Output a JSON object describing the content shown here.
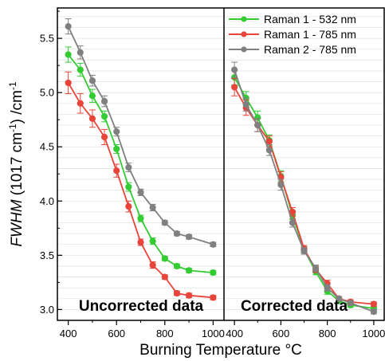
{
  "chart_data": {
    "type": "line",
    "xlabel": "Burning Temperature °C",
    "ylabel_parts": [
      "FWHM",
      " (1017 cm",
      "-1",
      ") /cm",
      "-1"
    ],
    "ylim": [
      2.9,
      5.78
    ],
    "yticks": [
      "3.0",
      "3.5",
      "4.0",
      "4.5",
      "5.0",
      "5.5"
    ],
    "ytick_values": [
      3.0,
      3.5,
      4.0,
      4.5,
      5.0,
      5.5
    ],
    "grid": true,
    "legend_position": "top-right",
    "colors": {
      "raman1_532": "#33cc33",
      "raman1_785": "#e8443a",
      "raman2_785": "#808080"
    },
    "panels": [
      {
        "label": "Uncorrected data",
        "xlim": [
          355,
          1045
        ],
        "xticks": [
          "400",
          "600",
          "800",
          "1000"
        ],
        "xtick_values": [
          400,
          600,
          800,
          1000
        ],
        "series": [
          {
            "name": "Raman 1 - 532 nm",
            "color_key": "raman1_532",
            "x": [
              400,
              450,
              500,
              550,
              600,
              650,
              700,
              750,
              800,
              850,
              900,
              1000
            ],
            "y": [
              5.35,
              5.21,
              4.97,
              4.78,
              4.48,
              4.13,
              3.84,
              3.63,
              3.47,
              3.4,
              3.36,
              3.34
            ],
            "err": [
              0.07,
              0.06,
              0.06,
              0.05,
              0.04,
              0.04,
              0.03,
              0.03,
              0.02,
              0.02,
              0.02,
              0.02
            ]
          },
          {
            "name": "Raman 1 - 785 nm",
            "color_key": "raman1_785",
            "x": [
              400,
              450,
              500,
              550,
              600,
              650,
              700,
              750,
              800,
              850,
              900,
              1000
            ],
            "y": [
              5.09,
              4.9,
              4.76,
              4.59,
              4.28,
              3.95,
              3.62,
              3.41,
              3.3,
              3.15,
              3.13,
              3.11
            ],
            "err": [
              0.1,
              0.09,
              0.08,
              0.07,
              0.06,
              0.05,
              0.03,
              0.03,
              0.02,
              0.02,
              0.02,
              0.02
            ]
          },
          {
            "name": "Raman 2 - 785 nm",
            "color_key": "raman2_785",
            "x": [
              400,
              450,
              500,
              550,
              600,
              650,
              700,
              750,
              800,
              850,
              900,
              1000
            ],
            "y": [
              5.61,
              5.37,
              5.11,
              4.92,
              4.64,
              4.31,
              4.08,
              3.94,
              3.8,
              3.7,
              3.67,
              3.6
            ],
            "err": [
              0.07,
              0.06,
              0.05,
              0.05,
              0.04,
              0.04,
              0.03,
              0.03,
              0.02,
              0.02,
              0.02,
              0.02
            ]
          }
        ]
      },
      {
        "label": "Corrected data",
        "xlim": [
          355,
          1045
        ],
        "xticks": [
          "400",
          "600",
          "800",
          "1000"
        ],
        "xtick_values": [
          400,
          600,
          800,
          1000
        ],
        "series": [
          {
            "name": "Raman 1 - 532 nm",
            "color_key": "raman1_532",
            "x": [
              400,
              450,
              500,
              550,
              600,
              650,
              700,
              750,
              800,
              850,
              900,
              1000
            ],
            "y": [
              5.14,
              4.95,
              4.77,
              4.56,
              4.23,
              3.87,
              3.55,
              3.35,
              3.17,
              3.08,
              3.04,
              3.01
            ],
            "err": [
              0.07,
              0.06,
              0.06,
              0.05,
              0.05,
              0.04,
              0.03,
              0.03,
              0.03,
              0.02,
              0.02,
              0.02
            ]
          },
          {
            "name": "Raman 1 - 785 nm",
            "color_key": "raman1_785",
            "x": [
              400,
              450,
              500,
              550,
              600,
              650,
              700,
              750,
              800,
              850,
              900,
              1000
            ],
            "y": [
              5.05,
              4.86,
              4.7,
              4.55,
              4.22,
              3.9,
              3.56,
              3.37,
              3.24,
              3.1,
              3.07,
              3.05
            ],
            "err": [
              0.08,
              0.07,
              0.06,
              0.05,
              0.05,
              0.04,
              0.03,
              0.03,
              0.03,
              0.02,
              0.02,
              0.02
            ]
          },
          {
            "name": "Raman 2 - 785 nm",
            "color_key": "raman2_785",
            "x": [
              400,
              450,
              500,
              550,
              600,
              650,
              700,
              750,
              800,
              850,
              900,
              1000
            ],
            "y": [
              5.21,
              4.89,
              4.7,
              4.47,
              4.15,
              3.8,
              3.54,
              3.38,
              3.2,
              3.1,
              3.06,
              2.98
            ],
            "err": [
              0.07,
              0.06,
              0.06,
              0.05,
              0.05,
              0.04,
              0.03,
              0.03,
              0.03,
              0.02,
              0.02,
              0.02
            ]
          }
        ]
      }
    ]
  }
}
